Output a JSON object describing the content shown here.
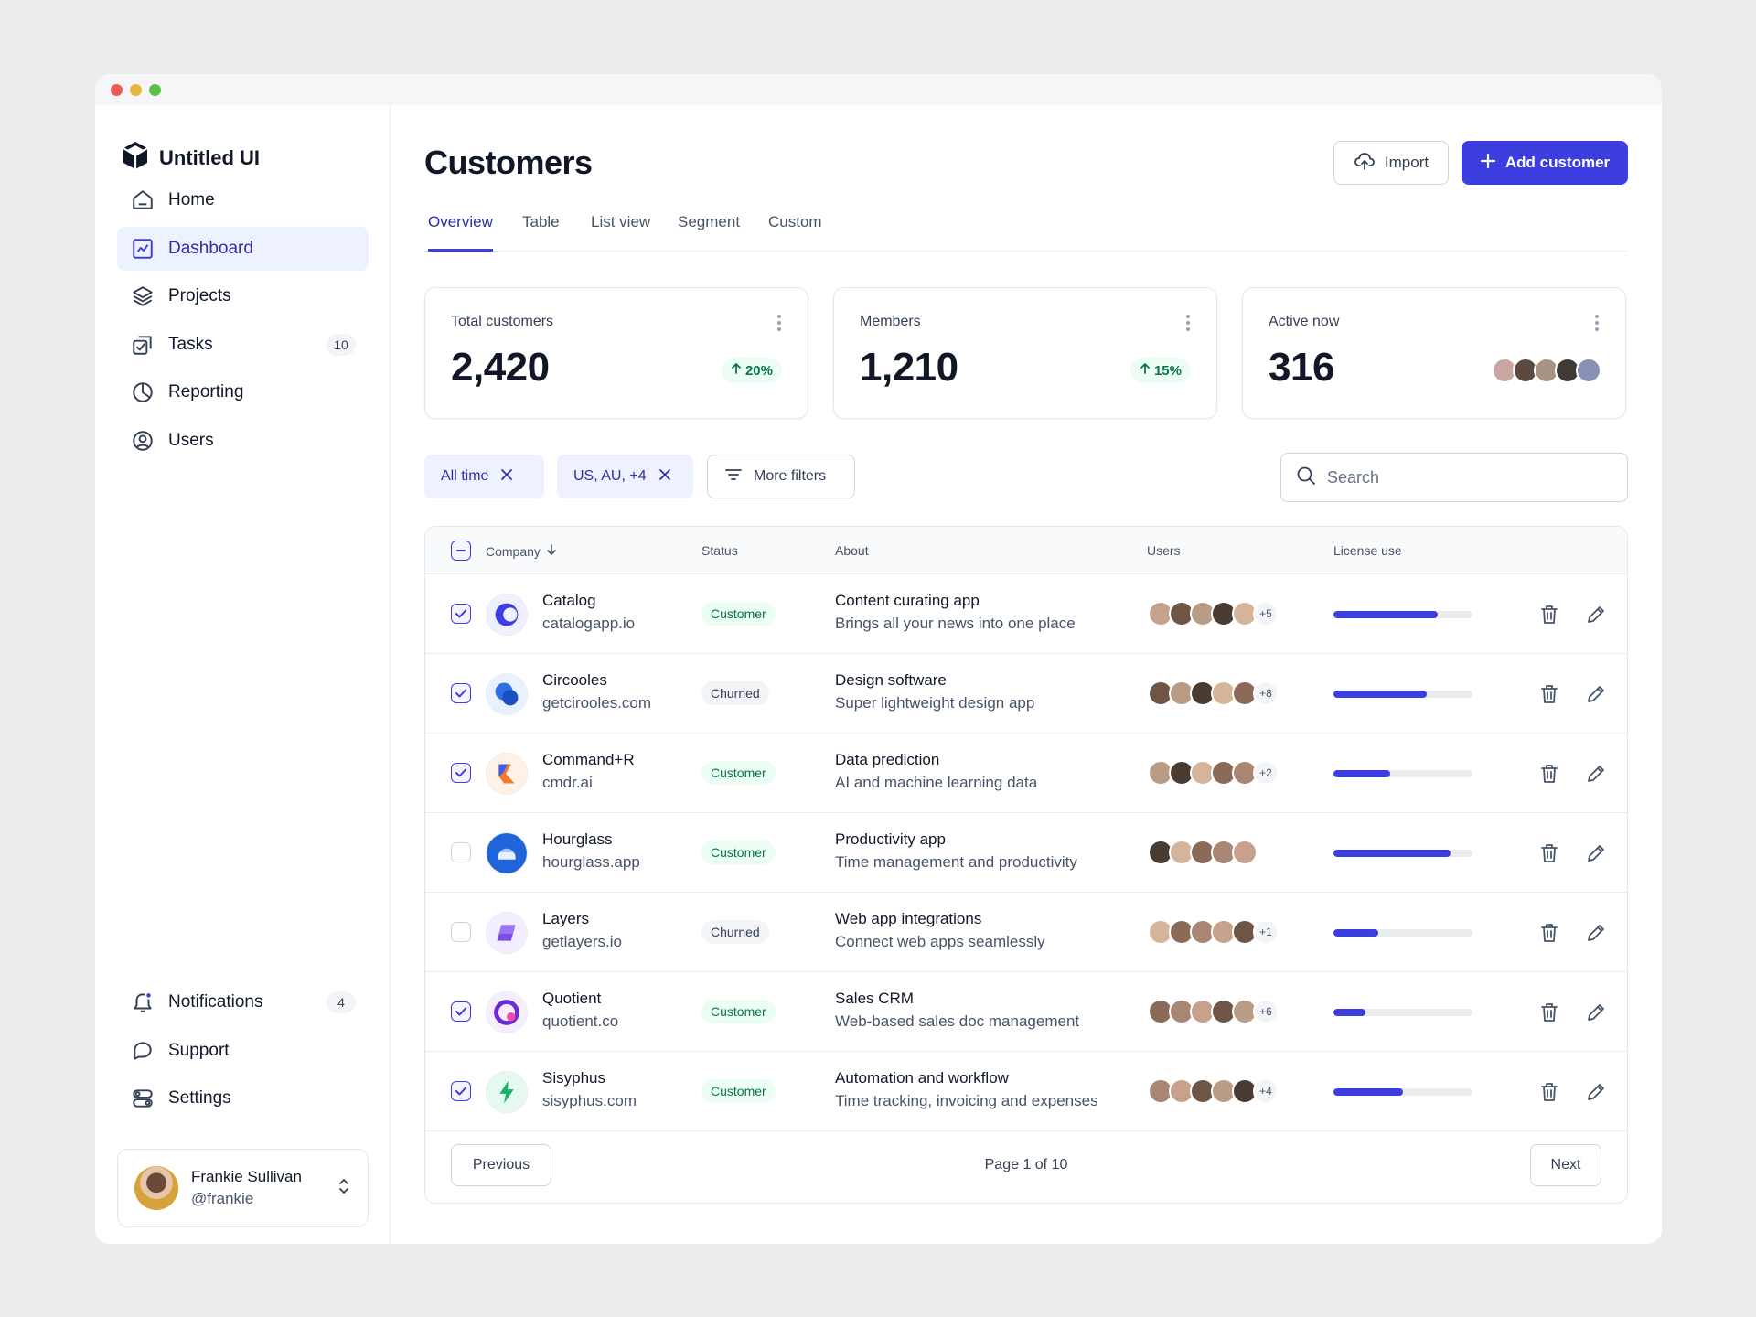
{
  "app": {
    "name": "Untitled UI"
  },
  "sidebar": {
    "items": [
      {
        "label": "Home",
        "icon": "home-icon"
      },
      {
        "label": "Dashboard",
        "icon": "dashboard-icon",
        "active": true
      },
      {
        "label": "Projects",
        "icon": "layers-icon"
      },
      {
        "label": "Tasks",
        "icon": "tasks-icon",
        "badge": "10"
      },
      {
        "label": "Reporting",
        "icon": "pie-chart-icon"
      },
      {
        "label": "Users",
        "icon": "user-circle-icon"
      }
    ],
    "bottom_items": [
      {
        "label": "Notifications",
        "icon": "bell-icon",
        "badge": "4"
      },
      {
        "label": "Support",
        "icon": "message-icon"
      },
      {
        "label": "Settings",
        "icon": "settings-toggle-icon"
      }
    ],
    "user": {
      "name": "Frankie Sullivan",
      "handle": "@frankie"
    }
  },
  "header": {
    "title": "Customers",
    "import_label": "Import",
    "add_label": "Add customer"
  },
  "tabs": [
    {
      "label": "Overview",
      "active": true
    },
    {
      "label": "Table"
    },
    {
      "label": "List view"
    },
    {
      "label": "Segment"
    },
    {
      "label": "Custom"
    }
  ],
  "stats": [
    {
      "label": "Total customers",
      "value": "2,420",
      "change": "20%"
    },
    {
      "label": "Members",
      "value": "1,210",
      "change": "15%"
    },
    {
      "label": "Active now",
      "value": "316"
    }
  ],
  "filters": {
    "chips": [
      "All time",
      "US, AU, +4"
    ],
    "more_label": "More filters",
    "search_placeholder": "Search"
  },
  "table": {
    "columns": {
      "company": "Company",
      "status": "Status",
      "about": "About",
      "users": "Users",
      "license": "License use"
    },
    "rows": [
      {
        "checked": true,
        "company": "Catalog",
        "domain": "catalogapp.io",
        "status": "Customer",
        "about_title": "Content curating app",
        "about_desc": "Brings all your news into one place",
        "users_more": "+5",
        "license": 0.75
      },
      {
        "checked": true,
        "company": "Circooles",
        "domain": "getcirooles.com",
        "status": "Churned",
        "about_title": "Design software",
        "about_desc": "Super lightweight design app",
        "users_more": "+8",
        "license": 0.67
      },
      {
        "checked": true,
        "company": "Command+R",
        "domain": "cmdr.ai",
        "status": "Customer",
        "about_title": "Data prediction",
        "about_desc": "AI and machine learning data",
        "users_more": "+2",
        "license": 0.41
      },
      {
        "checked": false,
        "company": "Hourglass",
        "domain": "hourglass.app",
        "status": "Customer",
        "about_title": "Productivity app",
        "about_desc": "Time management and productivity",
        "users_more": "",
        "license": 0.84
      },
      {
        "checked": false,
        "company": "Layers",
        "domain": "getlayers.io",
        "status": "Churned",
        "about_title": "Web app integrations",
        "about_desc": "Connect web apps seamlessly",
        "users_more": "+1",
        "license": 0.32
      },
      {
        "checked": true,
        "company": "Quotient",
        "domain": "quotient.co",
        "status": "Customer",
        "about_title": "Sales CRM",
        "about_desc": "Web-based sales doc management",
        "users_more": "+6",
        "license": 0.23
      },
      {
        "checked": true,
        "company": "Sisyphus",
        "domain": "sisyphus.com",
        "status": "Customer",
        "about_title": "Automation and workflow",
        "about_desc": "Time tracking, invoicing and expenses",
        "users_more": "+4",
        "license": 0.5
      }
    ]
  },
  "pagination": {
    "previous_label": "Previous",
    "page_text": "Page 1 of 10",
    "next_label": "Next"
  },
  "colors": {
    "accent": "#3d3ee0",
    "accent_text": "#2e2ea8",
    "success_bg": "#ecfdf3",
    "success_text": "#067647"
  }
}
